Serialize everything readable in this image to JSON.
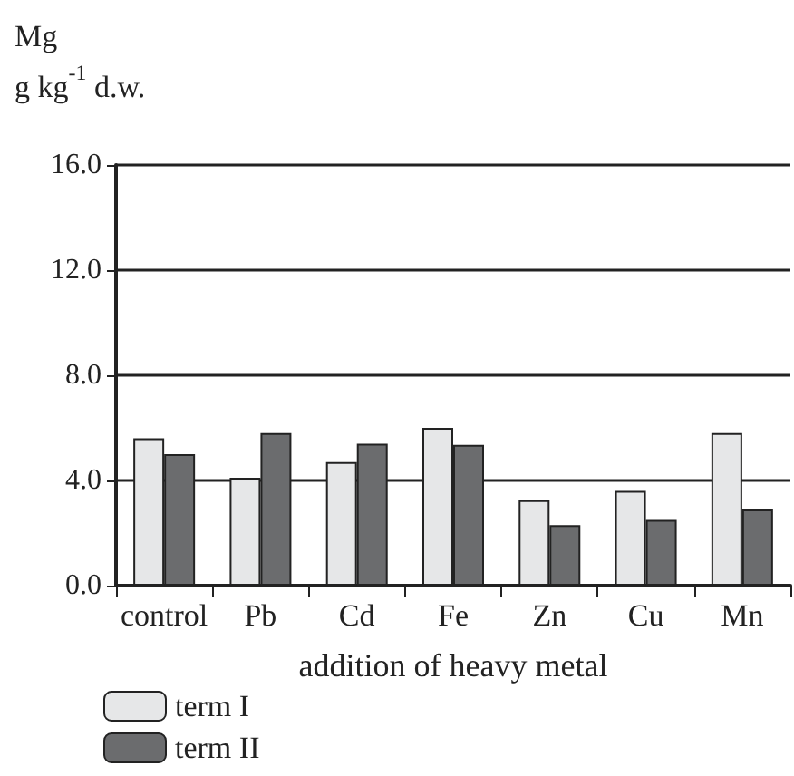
{
  "chart_data": {
    "type": "bar",
    "ylabel": "Mg\ng kg$^{-1}$ d.w.",
    "xlabel": "addition of heavy metal",
    "categories": [
      "control",
      "Pb",
      "Cd",
      "Fe",
      "Zn",
      "Cu",
      "Mn"
    ],
    "series": [
      {
        "name": "term I",
        "color": "#e6e7e8",
        "values": [
          5.6,
          4.1,
          4.7,
          6.0,
          3.25,
          3.6,
          5.8
        ]
      },
      {
        "name": "term II",
        "color": "#6b6c6e",
        "values": [
          5.0,
          5.8,
          5.4,
          5.35,
          2.3,
          2.5,
          2.9
        ]
      }
    ],
    "ylim": [
      0,
      16
    ],
    "yticks": [
      {
        "value": 0,
        "label": "0.0"
      },
      {
        "value": 4,
        "label": "4.0"
      },
      {
        "value": 8,
        "label": "8.0"
      },
      {
        "value": 12,
        "label": "12.0"
      },
      {
        "value": 16,
        "label": "16.0"
      }
    ],
    "grid": "y",
    "legend": "bottom left"
  }
}
